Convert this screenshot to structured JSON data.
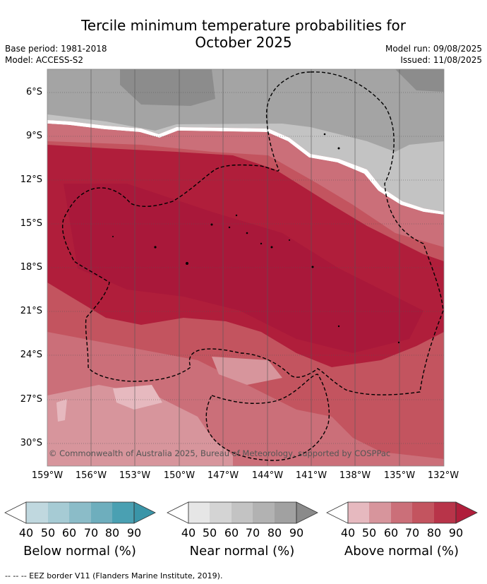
{
  "header": {
    "title_line1": "Tercile minimum temperature probabilities for",
    "title_line2": "October 2025",
    "base_period": "Base period: 1981-2018",
    "model": "Model: ACCESS-S2",
    "model_run": "Model run: 09/08/2025",
    "issued": "Issued: 11/08/2025"
  },
  "map": {
    "lat_labels": [
      "6°S",
      "9°S",
      "12°S",
      "15°S",
      "18°S",
      "21°S",
      "24°S",
      "27°S",
      "30°S"
    ],
    "lon_labels": [
      "159°W",
      "156°W",
      "153°W",
      "150°W",
      "147°W",
      "144°W",
      "141°W",
      "138°W",
      "135°W",
      "132°W"
    ],
    "copyright": "© Commonwealth of Australia 2025, Bureau of Meteorology, supported by COSPPac"
  },
  "colorbars": [
    {
      "title": "Below normal (%)",
      "ticks": [
        "40",
        "50",
        "60",
        "70",
        "80",
        "90"
      ],
      "colors": [
        "#ffffff",
        "#c0d8df",
        "#a6cbd4",
        "#8bbcc8",
        "#6eaebd",
        "#4aa0b2",
        "#3a95a8"
      ]
    },
    {
      "title": "Near normal (%)",
      "ticks": [
        "40",
        "50",
        "60",
        "70",
        "80",
        "90"
      ],
      "colors": [
        "#ffffff",
        "#e6e6e6",
        "#d4d4d4",
        "#c3c3c3",
        "#b2b2b2",
        "#a1a1a1",
        "#8a8a8a"
      ]
    },
    {
      "title": "Above normal (%)",
      "ticks": [
        "40",
        "50",
        "60",
        "70",
        "80",
        "90"
      ],
      "colors": [
        "#ffffff",
        "#e6b9bf",
        "#d7959c",
        "#cb6f79",
        "#c3545f",
        "#b83449",
        "#b01e3b"
      ]
    }
  ],
  "footer": "-- -- -- EEZ border V11 (Flanders Marine Institute, 2019)."
}
